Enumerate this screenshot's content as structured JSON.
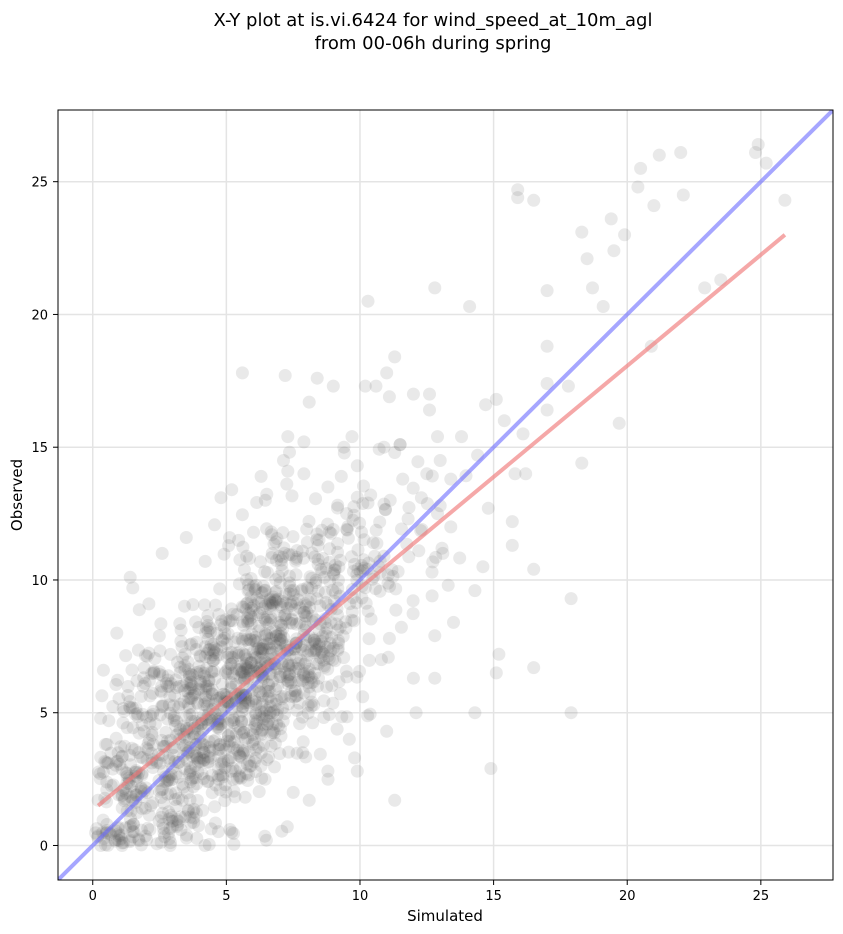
{
  "chart_data": {
    "type": "scatter",
    "title": "X-Y plot at is.vi.6424 for wind_speed_at_10m_agl",
    "subtitle": "from 00-06h during spring",
    "xlabel": "Simulated",
    "ylabel": "Observed",
    "xlim": [
      -1.3,
      27.7
    ],
    "ylim": [
      -1.3,
      27.7
    ],
    "x_ticks": [
      0,
      5,
      10,
      15,
      20,
      25
    ],
    "y_ticks": [
      0,
      5,
      10,
      15,
      20,
      25
    ],
    "x_tick_labels": [
      "0",
      "5",
      "10",
      "15",
      "20",
      "25"
    ],
    "y_tick_labels": [
      "0",
      "5",
      "10",
      "15",
      "20",
      "25"
    ],
    "grid": true,
    "legend": "none",
    "point_color": "#555555",
    "dense_cloud": {
      "x_range": [
        0.1,
        26.0
      ],
      "center": [
        5.5,
        6.0
      ],
      "approx_count": 1400
    },
    "outlier_points": [
      [
        24.8,
        26.1
      ],
      [
        24.9,
        26.4
      ],
      [
        25.2,
        25.7
      ],
      [
        25.9,
        24.3
      ],
      [
        22.0,
        26.1
      ],
      [
        21.2,
        26.0
      ],
      [
        20.5,
        25.5
      ],
      [
        20.4,
        24.8
      ],
      [
        21.0,
        24.1
      ],
      [
        22.1,
        24.5
      ],
      [
        15.9,
        24.7
      ],
      [
        15.9,
        24.4
      ],
      [
        16.5,
        24.3
      ],
      [
        18.3,
        23.1
      ],
      [
        19.4,
        23.6
      ],
      [
        19.9,
        23.0
      ],
      [
        19.5,
        22.4
      ],
      [
        18.5,
        22.1
      ],
      [
        23.5,
        21.3
      ],
      [
        22.9,
        21.0
      ],
      [
        18.7,
        21.0
      ],
      [
        12.8,
        21.0
      ],
      [
        17.0,
        20.9
      ],
      [
        10.3,
        20.5
      ],
      [
        14.1,
        20.3
      ],
      [
        19.1,
        20.3
      ],
      [
        20.9,
        18.8
      ],
      [
        17.0,
        18.8
      ],
      [
        11.3,
        18.4
      ],
      [
        5.6,
        17.8
      ],
      [
        7.2,
        17.7
      ],
      [
        8.4,
        17.6
      ],
      [
        11.0,
        17.8
      ],
      [
        10.2,
        17.3
      ],
      [
        9.0,
        17.3
      ],
      [
        17.0,
        17.4
      ],
      [
        17.8,
        17.3
      ],
      [
        12.6,
        17.0
      ],
      [
        11.1,
        16.9
      ],
      [
        12.0,
        17.0
      ],
      [
        15.1,
        16.8
      ],
      [
        8.1,
        16.7
      ],
      [
        14.7,
        16.6
      ],
      [
        12.6,
        16.4
      ],
      [
        17.0,
        16.4
      ],
      [
        19.7,
        15.9
      ],
      [
        15.4,
        16.0
      ],
      [
        10.6,
        17.3
      ],
      [
        7.3,
        15.4
      ],
      [
        13.8,
        15.4
      ],
      [
        9.7,
        15.4
      ],
      [
        12.9,
        15.4
      ],
      [
        11.5,
        15.1
      ],
      [
        10.9,
        15.0
      ],
      [
        16.1,
        15.5
      ],
      [
        14.4,
        14.7
      ],
      [
        15.8,
        14.0
      ],
      [
        16.2,
        14.0
      ],
      [
        18.3,
        14.4
      ],
      [
        13.4,
        13.8
      ],
      [
        14.8,
        12.7
      ],
      [
        15.7,
        12.2
      ],
      [
        15.7,
        11.3
      ],
      [
        14.6,
        10.5
      ],
      [
        16.5,
        10.4
      ],
      [
        14.3,
        9.6
      ],
      [
        17.9,
        9.3
      ],
      [
        15.2,
        7.2
      ],
      [
        15.1,
        6.5
      ],
      [
        16.5,
        6.7
      ],
      [
        17.9,
        5.0
      ],
      [
        14.3,
        5.0
      ],
      [
        12.1,
        5.0
      ],
      [
        14.9,
        2.9
      ],
      [
        11.3,
        1.7
      ],
      [
        12.0,
        6.3
      ],
      [
        12.8,
        6.3
      ],
      [
        12.8,
        7.9
      ],
      [
        13.5,
        8.4
      ],
      [
        12.7,
        9.4
      ],
      [
        11.1,
        7.8
      ],
      [
        9.6,
        4.0
      ],
      [
        9.8,
        3.3
      ],
      [
        9.9,
        2.8
      ],
      [
        6.5,
        0.2
      ],
      [
        4.2,
        0.0
      ],
      [
        0.4,
        6.6
      ],
      [
        1.4,
        10.1
      ],
      [
        2.6,
        11.0
      ],
      [
        3.5,
        11.6
      ],
      [
        4.8,
        13.1
      ],
      [
        5.2,
        13.4
      ],
      [
        6.3,
        13.9
      ],
      [
        7.3,
        14.1
      ],
      [
        7.9,
        14.0
      ],
      [
        8.8,
        13.5
      ],
      [
        1.5,
        9.7
      ],
      [
        2.1,
        9.1
      ],
      [
        0.9,
        8.0
      ],
      [
        0.6,
        4.7
      ],
      [
        0.2,
        1.7
      ],
      [
        0.3,
        0.0
      ],
      [
        1.1,
        0.0
      ],
      [
        2.9,
        0.0
      ],
      [
        5.2,
        0.5
      ],
      [
        7.5,
        2.0
      ],
      [
        8.1,
        1.7
      ],
      [
        8.8,
        2.8
      ],
      [
        10.1,
        5.6
      ],
      [
        11.0,
        4.3
      ],
      [
        10.8,
        7.0
      ],
      [
        9.0,
        11.9
      ],
      [
        9.5,
        12.5
      ],
      [
        6.7,
        11.7
      ],
      [
        13.3,
        9.8
      ],
      [
        13.1,
        11.0
      ],
      [
        12.2,
        11.1
      ],
      [
        11.8,
        12.3
      ],
      [
        12.5,
        14.0
      ],
      [
        13.0,
        14.5
      ],
      [
        12.3,
        13.1
      ],
      [
        11.6,
        13.8
      ],
      [
        12.9,
        12.5
      ],
      [
        13.4,
        12.0
      ],
      [
        9.9,
        14.3
      ],
      [
        9.4,
        15.0
      ],
      [
        7.9,
        15.2
      ],
      [
        9.3,
        13.9
      ],
      [
        10.4,
        13.2
      ],
      [
        10.3,
        12.9
      ],
      [
        11.5,
        15.1
      ],
      [
        11.3,
        14.8
      ]
    ],
    "identity_line": {
      "color": "#6b6bff",
      "from": [
        -1.3,
        -1.3
      ],
      "to": [
        27.7,
        27.7
      ]
    },
    "fit_line": {
      "color": "#f07a7a",
      "from": [
        0.2,
        1.5
      ],
      "to": [
        25.9,
        23.0
      ]
    }
  }
}
